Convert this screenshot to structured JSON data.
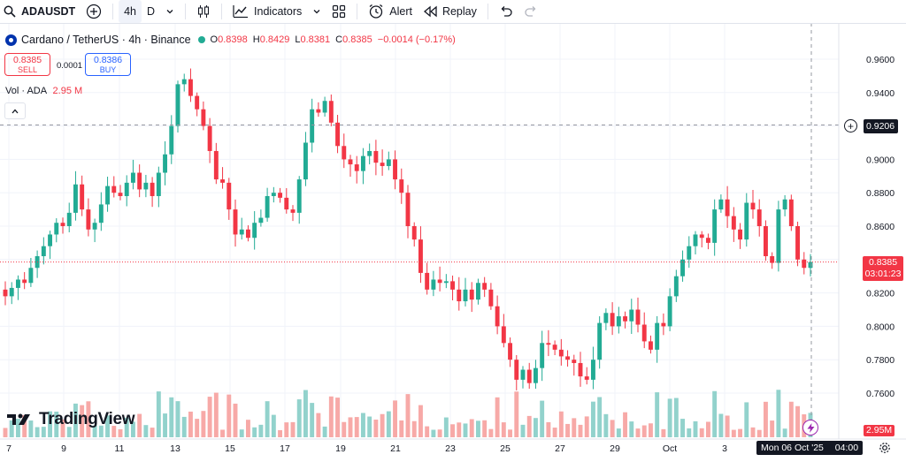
{
  "toolbar": {
    "symbol": "ADAUSDT",
    "timeframe_active": "4h",
    "timeframe_day": "D",
    "indicators_label": "Indicators",
    "alert_label": "Alert",
    "replay_label": "Replay",
    "icons": [
      "search-icon",
      "add-symbol-icon",
      "chevron-down-icon",
      "candles-icon",
      "indicators-icon",
      "chevron-down-icon",
      "layout-grid-icon",
      "alert-clock-icon",
      "replay-icon",
      "undo-icon",
      "redo-icon"
    ]
  },
  "legend": {
    "title": "Cardano / TetherUS · 4h · Binance",
    "o_label": "O",
    "o_value": "0.8398",
    "h_label": "H",
    "h_value": "0.8429",
    "l_label": "L",
    "l_value": "0.8381",
    "c_label": "C",
    "c_value": "0.8385",
    "change": "−0.0014 (−0.17%)"
  },
  "trade": {
    "sell_price": "0.8385",
    "sell_label": "SELL",
    "spread": "0.0001",
    "buy_price": "0.8386",
    "buy_label": "BUY"
  },
  "volume_legend": {
    "label": "Vol · ADA",
    "value": "2.95 M"
  },
  "price_axis": [
    "0.9600",
    "0.9400",
    "0.9200",
    "0.9000",
    "0.8800",
    "0.8600",
    "0.8400",
    "0.8200",
    "0.8000",
    "0.7800",
    "0.7600"
  ],
  "crosshair_price": "0.9206",
  "last_price": "0.8385",
  "countdown": "03:01:23",
  "volume_tag": "2.95M",
  "date_axis": [
    "7",
    "9",
    "11",
    "13",
    "15",
    "17",
    "19",
    "21",
    "23",
    "25",
    "27",
    "29",
    "Oct",
    "3"
  ],
  "date_tag": "Mon 06 Oct '25",
  "time_tag": "04:00",
  "logo_text": "TradingView",
  "colors": {
    "up": "#22ab94",
    "down": "#f23645",
    "up_vol": "#92d2cc",
    "down_vol": "#f7a9a7",
    "grid": "#f0f3fa"
  },
  "chart_data": {
    "type": "candlestick",
    "title": "Cardano / TetherUS · 4h · Binance",
    "ylim": [
      0.744,
      0.975
    ],
    "close_path": [
      0.818,
      0.823,
      0.828,
      0.826,
      0.835,
      0.842,
      0.848,
      0.855,
      0.862,
      0.86,
      0.868,
      0.885,
      0.87,
      0.858,
      0.862,
      0.873,
      0.884,
      0.88,
      0.878,
      0.886,
      0.892,
      0.882,
      0.886,
      0.878,
      0.892,
      0.903,
      0.92,
      0.945,
      0.948,
      0.938,
      0.93,
      0.92,
      0.905,
      0.888,
      0.886,
      0.87,
      0.855,
      0.858,
      0.853,
      0.862,
      0.865,
      0.878,
      0.88,
      0.877,
      0.87,
      0.868,
      0.888,
      0.91,
      0.93,
      0.928,
      0.935,
      0.922,
      0.908,
      0.9,
      0.897,
      0.893,
      0.902,
      0.905,
      0.898,
      0.896,
      0.9,
      0.888,
      0.88,
      0.86,
      0.852,
      0.832,
      0.822,
      0.828,
      0.826,
      0.827,
      0.822,
      0.815,
      0.822,
      0.816,
      0.826,
      0.822,
      0.812,
      0.8,
      0.79,
      0.78,
      0.768,
      0.774,
      0.766,
      0.775,
      0.79,
      0.789,
      0.786,
      0.782,
      0.78,
      0.778,
      0.77,
      0.768,
      0.78,
      0.802,
      0.808,
      0.8,
      0.806,
      0.803,
      0.81,
      0.801,
      0.791,
      0.786,
      0.802,
      0.8,
      0.818,
      0.83,
      0.84,
      0.848,
      0.855,
      0.853,
      0.85,
      0.87,
      0.876,
      0.866,
      0.858,
      0.852,
      0.874,
      0.87,
      0.86,
      0.842,
      0.838,
      0.87,
      0.876,
      0.86,
      0.84,
      0.835,
      0.8385
    ],
    "volume_max_millions": 10.0,
    "volume_last_millions": 2.95
  }
}
